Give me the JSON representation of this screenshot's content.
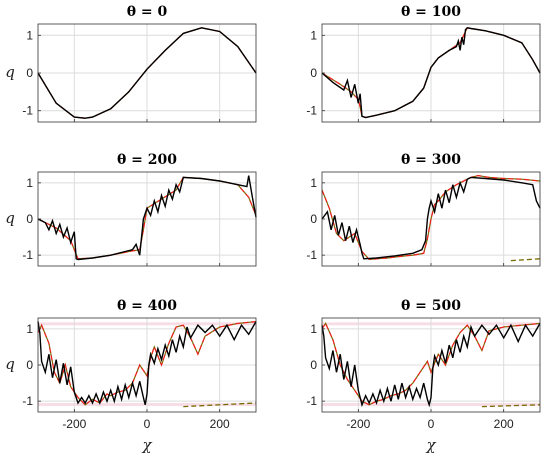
{
  "chart_data": {
    "type": "line",
    "xlabel": "χ",
    "ylabel": "q",
    "xlim": [
      -300,
      300
    ],
    "ylim": [
      -1.3,
      1.3
    ],
    "xticks": [
      -200,
      0,
      200
    ],
    "yticks": [
      -1,
      0,
      1
    ],
    "xtick_labels": [
      "-200",
      "0",
      "200"
    ],
    "ytick_labels": [
      "-1",
      "0",
      "1"
    ],
    "grid": true,
    "colors": {
      "numeric": "#000000",
      "dashed_red": "#e8211b",
      "dashed_olive": "#7a6b00",
      "band": "#f7dde6"
    },
    "panels": [
      {
        "title": "θ = 0",
        "theta": 0,
        "numeric": {
          "x": [
            -300,
            -250,
            -200,
            -170,
            -150,
            -100,
            -50,
            0,
            50,
            100,
            150,
            200,
            250,
            300
          ],
          "y": [
            0,
            -0.8,
            -1.17,
            -1.2,
            -1.17,
            -0.95,
            -0.5,
            0.1,
            0.6,
            1.05,
            1.2,
            1.1,
            0.7,
            0
          ]
        },
        "dashed": {
          "x": [
            -300,
            -250,
            -200,
            -170,
            -150,
            -100,
            -50,
            0,
            50,
            100,
            150,
            200,
            250,
            300
          ],
          "y": [
            0,
            -0.8,
            -1.17,
            -1.2,
            -1.17,
            -0.95,
            -0.5,
            0.1,
            0.6,
            1.05,
            1.2,
            1.1,
            0.7,
            0
          ]
        }
      },
      {
        "title": "θ = 100",
        "theta": 100,
        "numeric": {
          "x": [
            -300,
            -270,
            -240,
            -230,
            -220,
            -210,
            -200,
            -195,
            -190,
            -180,
            -150,
            -100,
            -50,
            -20,
            0,
            20,
            50,
            70,
            75,
            80,
            85,
            90,
            95,
            100,
            110,
            150,
            200,
            250,
            280,
            300
          ],
          "y": [
            0,
            -0.25,
            -0.45,
            -0.2,
            -0.65,
            -0.3,
            -0.8,
            -0.55,
            -1.15,
            -1.18,
            -1.12,
            -1.0,
            -0.75,
            -0.4,
            0.15,
            0.4,
            0.6,
            0.7,
            0.85,
            0.6,
            0.95,
            0.75,
            1.15,
            1.2,
            1.18,
            1.12,
            1.0,
            0.8,
            0.35,
            0
          ]
        },
        "dashed": {
          "x": [
            -300,
            -250,
            -220,
            -200,
            -195,
            -190,
            -180,
            -150,
            -100,
            -50,
            -20,
            0,
            20,
            50,
            80,
            95,
            100,
            110,
            150,
            200,
            250,
            280,
            300
          ],
          "y": [
            0,
            -0.3,
            -0.5,
            -0.7,
            -0.9,
            -1.15,
            -1.18,
            -1.12,
            -1.0,
            -0.75,
            -0.4,
            0.15,
            0.4,
            0.6,
            0.8,
            1.1,
            1.2,
            1.18,
            1.12,
            1.0,
            0.8,
            0.35,
            0
          ]
        }
      },
      {
        "title": "θ = 200",
        "theta": 200,
        "numeric": {
          "x": [
            -300,
            -280,
            -270,
            -260,
            -250,
            -240,
            -230,
            -220,
            -210,
            -200,
            -195,
            -190,
            -150,
            -100,
            -60,
            -40,
            -30,
            -20,
            -10,
            0,
            10,
            20,
            30,
            40,
            50,
            60,
            70,
            80,
            90,
            100,
            150,
            200,
            250,
            275,
            280,
            290,
            300
          ],
          "y": [
            0,
            -0.1,
            -0.3,
            -0.05,
            -0.4,
            -0.15,
            -0.5,
            -0.25,
            -0.65,
            -0.35,
            -1.1,
            -1.12,
            -1.08,
            -1.0,
            -0.9,
            -0.85,
            -0.7,
            -1.0,
            0.0,
            0.3,
            0.1,
            0.5,
            0.2,
            0.65,
            0.35,
            0.8,
            0.55,
            0.95,
            0.75,
            1.15,
            1.12,
            1.05,
            0.95,
            0.9,
            1.2,
            0.6,
            0.05
          ]
        },
        "dashed": {
          "x": [
            -300,
            -250,
            -210,
            -190,
            -150,
            -100,
            -50,
            -20,
            -10,
            0,
            40,
            80,
            100,
            150,
            200,
            250,
            280,
            300
          ],
          "y": [
            0,
            -0.25,
            -0.6,
            -1.1,
            -1.08,
            -1.0,
            -0.9,
            -0.85,
            -0.3,
            0.3,
            0.55,
            0.8,
            1.15,
            1.12,
            1.05,
            0.95,
            0.6,
            0.1
          ]
        }
      },
      {
        "title": "θ = 300",
        "theta": 300,
        "numeric": {
          "x": [
            -300,
            -285,
            -275,
            -265,
            -255,
            -245,
            -235,
            -225,
            -215,
            -205,
            -195,
            -190,
            -185,
            -150,
            -100,
            -50,
            -25,
            -15,
            -10,
            -5,
            0,
            10,
            20,
            30,
            40,
            50,
            60,
            70,
            80,
            90,
            100,
            110,
            150,
            200,
            250,
            280,
            290,
            300
          ],
          "y": [
            0,
            0.2,
            -0.3,
            0.1,
            -0.45,
            -0.1,
            -0.6,
            -0.2,
            -0.65,
            -0.3,
            -0.7,
            -0.95,
            -1.1,
            -1.08,
            -1.02,
            -0.95,
            -0.85,
            -0.6,
            0.0,
            0.3,
            0.5,
            0.2,
            0.7,
            0.3,
            0.8,
            0.45,
            0.95,
            0.6,
            1.0,
            0.75,
            1.1,
            1.15,
            1.12,
            1.08,
            1.0,
            0.95,
            0.5,
            0.3
          ]
        },
        "dashed": {
          "x": [
            -300,
            -280,
            -260,
            -240,
            -210,
            -190,
            -170,
            -150,
            -120,
            -100,
            -50,
            -20,
            -10,
            0,
            10,
            20,
            40,
            70,
            100,
            110,
            130,
            160,
            200,
            250,
            300
          ],
          "y": [
            0.8,
            0.3,
            -0.4,
            -0.6,
            -0.4,
            -0.9,
            -1.12,
            -1.1,
            -1.08,
            -1.05,
            -1.0,
            -0.95,
            -0.55,
            0.0,
            0.4,
            0.5,
            0.75,
            0.95,
            1.1,
            1.15,
            1.2,
            1.15,
            1.12,
            1.1,
            1.05
          ]
        },
        "dashed_extra": {
          "x": [
            220,
            300
          ],
          "y": [
            -1.15,
            -1.1
          ]
        }
      },
      {
        "title": "θ = 400",
        "theta": 400,
        "numeric": {
          "x": [
            -300,
            -295,
            -290,
            -280,
            -270,
            -260,
            -250,
            -240,
            -230,
            -220,
            -210,
            -200,
            -190,
            -180,
            -170,
            -160,
            -150,
            -140,
            -130,
            -120,
            -110,
            -100,
            -90,
            -80,
            -70,
            -60,
            -50,
            -40,
            -30,
            -20,
            -10,
            -5,
            0,
            5,
            10,
            20,
            30,
            40,
            50,
            60,
            70,
            80,
            90,
            100,
            110,
            120,
            140,
            160,
            180,
            200,
            220,
            240,
            260,
            280,
            300
          ],
          "y": [
            1.2,
            0.9,
            0.1,
            -0.2,
            0.3,
            -0.35,
            0.15,
            -0.5,
            0.05,
            -0.55,
            -0.05,
            -0.75,
            -1.05,
            -0.9,
            -1.05,
            -0.85,
            -1.05,
            -0.8,
            -1.05,
            -0.75,
            -1.0,
            -0.7,
            -1.0,
            -0.6,
            -0.95,
            -0.55,
            -0.9,
            -0.5,
            -0.85,
            -0.45,
            -0.9,
            -1.1,
            -0.8,
            0.0,
            0.3,
            0.05,
            0.45,
            0.15,
            0.55,
            0.25,
            0.7,
            0.35,
            0.8,
            0.5,
            1.05,
            0.75,
            1.1,
            0.9,
            1.1,
            0.8,
            1.1,
            0.7,
            1.1,
            0.85,
            1.2
          ]
        },
        "dashed": {
          "x": [
            -300,
            -290,
            -270,
            -255,
            -240,
            -225,
            -210,
            -190,
            -170,
            -150,
            -130,
            -110,
            -100,
            -80,
            -60,
            -40,
            -20,
            0,
            10,
            20,
            40,
            60,
            80,
            100,
            120,
            140,
            160,
            200,
            250,
            300
          ],
          "y": [
            0.9,
            1.1,
            0.6,
            -0.2,
            -0.5,
            0.0,
            -0.6,
            -0.9,
            -1.1,
            -0.95,
            -1.05,
            -0.8,
            -0.85,
            -0.75,
            -0.7,
            -0.5,
            0.0,
            -0.3,
            0.2,
            0.5,
            0.0,
            0.6,
            1.05,
            1.1,
            0.75,
            0.3,
            0.8,
            1.05,
            1.15,
            1.2
          ]
        },
        "dashed_extra": {
          "x": [
            100,
            300
          ],
          "y": [
            -1.15,
            -1.05
          ]
        }
      },
      {
        "title": "θ = 500",
        "theta": 500,
        "numeric": {
          "x": [
            -300,
            -295,
            -290,
            -280,
            -270,
            -260,
            -250,
            -240,
            -230,
            -220,
            -210,
            -200,
            -190,
            -180,
            -170,
            -160,
            -150,
            -140,
            -130,
            -120,
            -110,
            -100,
            -90,
            -80,
            -70,
            -60,
            -50,
            -40,
            -30,
            -20,
            -10,
            -5,
            0,
            5,
            10,
            20,
            30,
            40,
            50,
            60,
            70,
            80,
            90,
            100,
            110,
            120,
            140,
            160,
            180,
            200,
            220,
            240,
            260,
            280,
            300
          ],
          "y": [
            1.1,
            0.8,
            0.2,
            -0.1,
            0.4,
            -0.2,
            0.3,
            -0.4,
            0.1,
            -0.6,
            0.0,
            -0.7,
            -1.1,
            -0.85,
            -1.05,
            -0.8,
            -1.05,
            -0.7,
            -1.0,
            -0.65,
            -1.0,
            -0.55,
            -0.95,
            -0.5,
            -0.9,
            -0.6,
            -0.95,
            -0.65,
            -0.9,
            -0.5,
            -0.95,
            -1.1,
            -0.9,
            -0.1,
            0.25,
            0.0,
            0.4,
            0.05,
            0.55,
            0.2,
            0.7,
            0.35,
            0.8,
            0.5,
            1.05,
            0.8,
            1.1,
            0.85,
            1.1,
            0.75,
            1.1,
            0.65,
            1.1,
            0.8,
            1.15
          ]
        },
        "dashed": {
          "x": [
            -300,
            -290,
            -270,
            -250,
            -230,
            -210,
            -190,
            -170,
            -150,
            -130,
            -110,
            -90,
            -70,
            -50,
            -30,
            -10,
            0,
            20,
            40,
            60,
            80,
            100,
            120,
            140,
            160,
            200,
            250,
            300
          ],
          "y": [
            1.0,
            1.15,
            0.7,
            0.0,
            -0.4,
            -0.7,
            -1.0,
            -1.1,
            -1.0,
            -0.95,
            -0.85,
            -0.8,
            -0.7,
            -0.5,
            -0.2,
            0.1,
            -0.2,
            0.3,
            0.0,
            0.55,
            0.9,
            1.1,
            0.8,
            0.4,
            0.95,
            1.05,
            1.1,
            1.15
          ]
        },
        "dashed_extra": {
          "x": [
            140,
            300
          ],
          "y": [
            -1.15,
            -1.1
          ]
        }
      }
    ]
  }
}
